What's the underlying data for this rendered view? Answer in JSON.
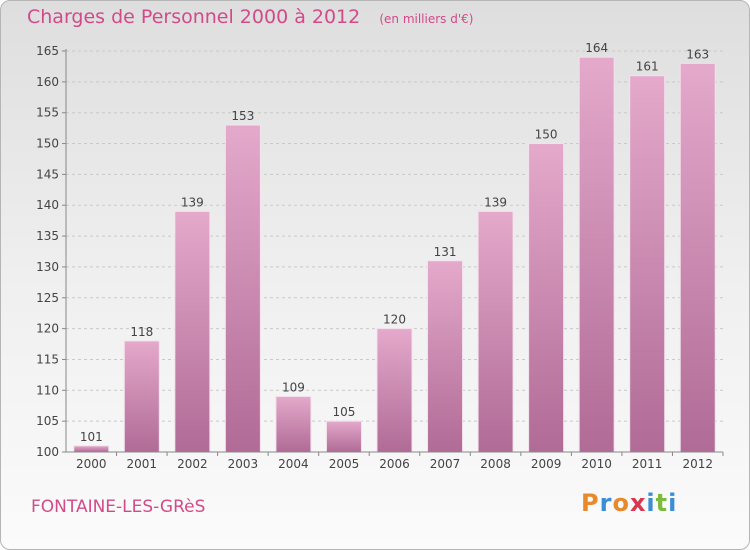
{
  "chart_data": {
    "type": "bar",
    "title": "Charges de Personnel 2000 à 2012",
    "subtitle": "(en milliers d'€)",
    "categories": [
      "2000",
      "2001",
      "2002",
      "2003",
      "2004",
      "2005",
      "2006",
      "2007",
      "2008",
      "2009",
      "2010",
      "2011",
      "2012"
    ],
    "values": [
      101,
      118,
      139,
      153,
      109,
      105,
      120,
      131,
      139,
      150,
      164,
      161,
      163
    ],
    "ylim": [
      100,
      165
    ],
    "yticks": [
      100,
      105,
      110,
      115,
      120,
      125,
      130,
      135,
      140,
      145,
      150,
      155,
      160,
      165
    ],
    "grid": true,
    "bar_color": "#d592b8",
    "title_color": "#d24a8a"
  },
  "footer": {
    "location": "FONTAINE-LES-GRèS",
    "logo": "Proxiti"
  }
}
